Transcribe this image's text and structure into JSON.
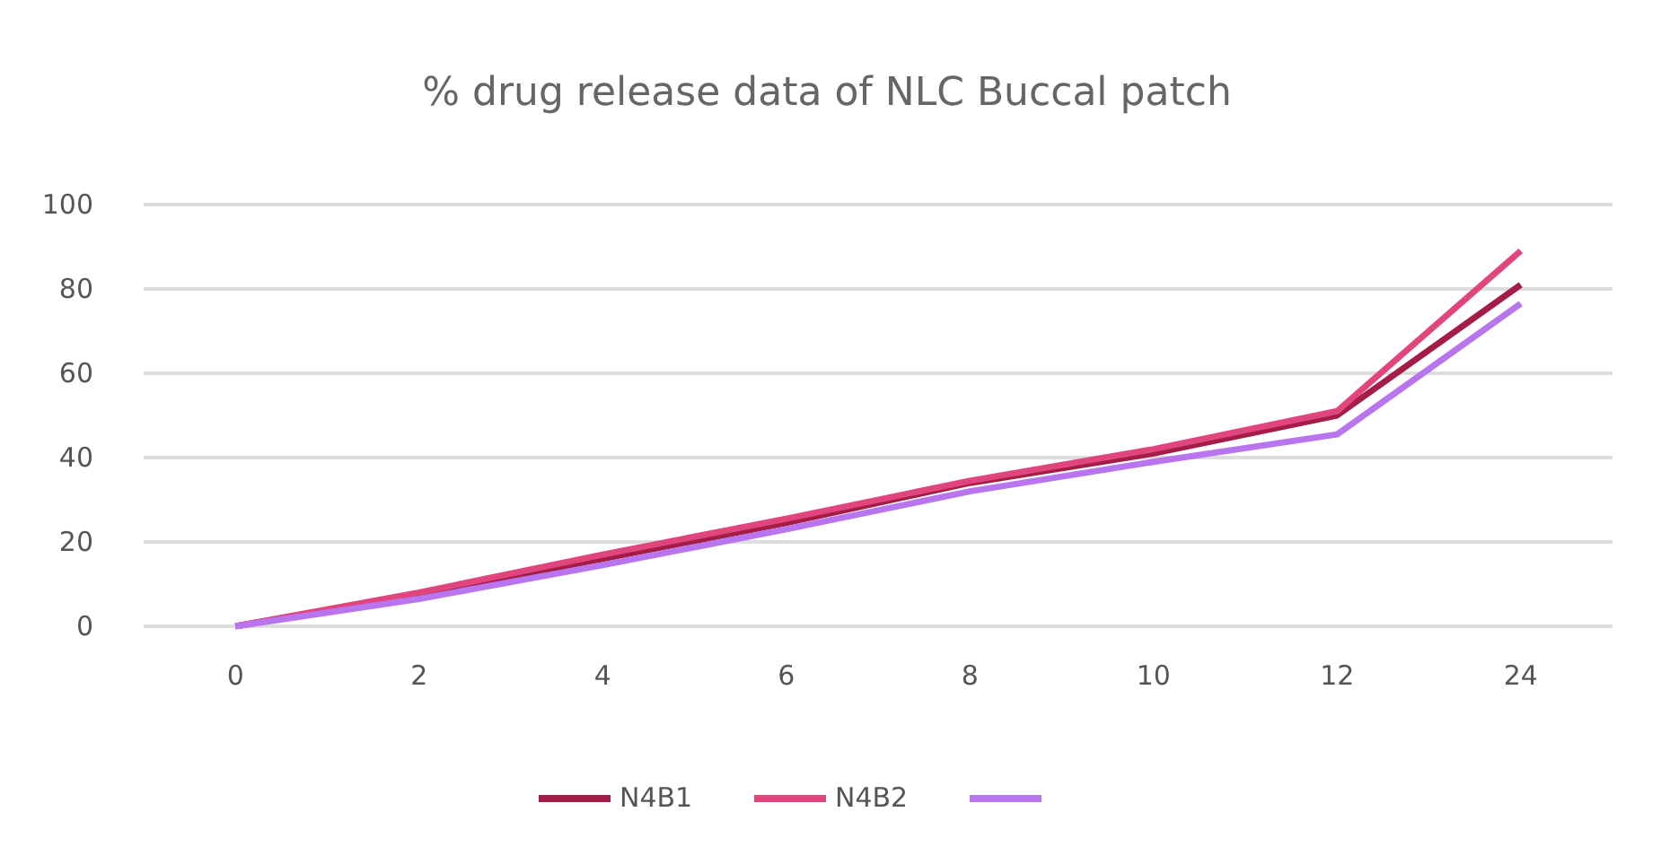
{
  "chart_data": {
    "type": "line",
    "title": "% drug release data of NLC Buccal patch",
    "categories": [
      "0",
      "2",
      "4",
      "6",
      "8",
      "10",
      "12",
      "24"
    ],
    "series": [
      {
        "name": "N4B1",
        "color": "#a31d47",
        "values": [
          0,
          7.5,
          16,
          24.5,
          34,
          41,
          50,
          81
        ]
      },
      {
        "name": "N4B2",
        "color": "#e0457e",
        "values": [
          0,
          8,
          17,
          25.5,
          34.5,
          42,
          51,
          89
        ]
      },
      {
        "color": "#b875ee",
        "values": [
          0,
          6.5,
          14.5,
          23,
          32,
          39,
          45.5,
          76.5
        ]
      }
    ],
    "ylim": [
      0,
      100
    ],
    "yticks": [
      0,
      20,
      40,
      60,
      80,
      100
    ],
    "grid": "y",
    "legend": "bottom",
    "marker": "none",
    "line_style": "solid"
  }
}
